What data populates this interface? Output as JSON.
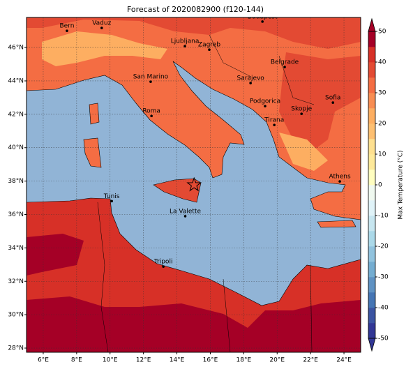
{
  "title": "Forecast of 2020082900 (f120-144)",
  "lon_range": [
    5,
    25
  ],
  "lat_range": [
    27.75,
    47.8
  ],
  "lon_ticks": [
    {
      "value": 6,
      "label": "6°E"
    },
    {
      "value": 8,
      "label": "8°E"
    },
    {
      "value": 10,
      "label": "10°E"
    },
    {
      "value": 12,
      "label": "12°E"
    },
    {
      "value": 14,
      "label": "14°E"
    },
    {
      "value": 16,
      "label": "16°E"
    },
    {
      "value": 18,
      "label": "18°E"
    },
    {
      "value": 20,
      "label": "20°E"
    },
    {
      "value": 22,
      "label": "22°E"
    },
    {
      "value": 24,
      "label": "24°E"
    }
  ],
  "lat_ticks": [
    {
      "value": 28,
      "label": "28°N"
    },
    {
      "value": 30,
      "label": "30°N"
    },
    {
      "value": 32,
      "label": "32°N"
    },
    {
      "value": 34,
      "label": "34°N"
    },
    {
      "value": 36,
      "label": "36°N"
    },
    {
      "value": 38,
      "label": "38°N"
    },
    {
      "value": 40,
      "label": "40°N"
    },
    {
      "value": 42,
      "label": "42°N"
    },
    {
      "value": 44,
      "label": "44°N"
    },
    {
      "value": 46,
      "label": "46°N"
    }
  ],
  "cities": [
    {
      "name": "Bern",
      "lon": 7.42,
      "lat": 47.0
    },
    {
      "name": "Vaduz",
      "lon": 9.5,
      "lat": 47.17
    },
    {
      "name": "Budapest",
      "lon": 19.12,
      "lat": 47.55
    },
    {
      "name": "Ljubljana",
      "lon": 14.48,
      "lat": 46.08
    },
    {
      "name": "Zagreb",
      "lon": 15.94,
      "lat": 45.87
    },
    {
      "name": "San Marino",
      "lon": 12.43,
      "lat": 43.95
    },
    {
      "name": "Belgrade",
      "lon": 20.45,
      "lat": 44.83
    },
    {
      "name": "Sarajevo",
      "lon": 18.41,
      "lat": 43.87
    },
    {
      "name": "Podgorica",
      "lon": 19.28,
      "lat": 42.49
    },
    {
      "name": "Sofia",
      "lon": 23.34,
      "lat": 42.7
    },
    {
      "name": "Skopje",
      "lon": 21.46,
      "lat": 42.03
    },
    {
      "name": "Tirana",
      "lon": 19.83,
      "lat": 41.36
    },
    {
      "name": "Roma",
      "lon": 12.48,
      "lat": 41.9
    },
    {
      "name": "Athens",
      "lon": 23.75,
      "lat": 37.98
    },
    {
      "name": "Tunis",
      "lon": 10.1,
      "lat": 36.8
    },
    {
      "name": "La Valette",
      "lon": 14.5,
      "lat": 35.9
    },
    {
      "name": "Tripoli",
      "lon": 13.19,
      "lat": 32.88
    }
  ],
  "marker": {
    "lon": 15.03,
    "lat": 37.77
  },
  "colorbar": {
    "label": "Max Temperature (°C)",
    "clim": [
      -50,
      50
    ],
    "ticks": [
      -50,
      -40,
      -30,
      -20,
      -10,
      0,
      10,
      20,
      30,
      40,
      50
    ],
    "colors": [
      "#313695",
      "#3b54a2",
      "#4575b4",
      "#5f92c3",
      "#74add1",
      "#91c3de",
      "#abd9e9",
      "#c7e6f0",
      "#e0f3f8",
      "#f0f9f0",
      "#fffec0",
      "#fee99a",
      "#fee090",
      "#fdbf71",
      "#fdae61",
      "#f88d52",
      "#f46d43",
      "#e34a33",
      "#d73027",
      "#a50026"
    ]
  }
}
